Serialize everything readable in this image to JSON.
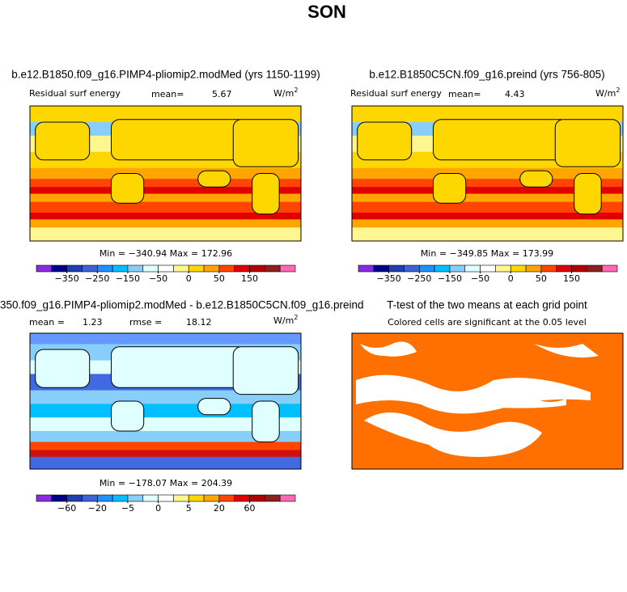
{
  "title": "SON",
  "panels": [
    {
      "title": "b.e12.B1850.f09_g16.PIMP4-pliomip2.modMed (yrs 1150-1199)",
      "left_label": "Residual surf energy",
      "mean_label": "mean=",
      "mean": "5.67",
      "units": "W/m",
      "units_exp": "2",
      "stats": "Min = −340.94 Max = 172.96",
      "colorbar_labels": [
        "−350",
        "−250",
        "−150",
        "−50",
        "0",
        "50",
        "150"
      ]
    },
    {
      "title": "b.e12.B1850C5CN.f09_g16.preind (yrs 756-805)",
      "left_label": "Residual surf energy",
      "mean_label": "mean=",
      "mean": "4.43",
      "units": "W/m",
      "units_exp": "2",
      "stats": "Min = −349.85 Max = 173.99",
      "colorbar_labels": [
        "−350",
        "−250",
        "−150",
        "−50",
        "0",
        "50",
        "150"
      ]
    },
    {
      "title": "350.f09_g16.PIMP4-pliomip2.modMed - b.e12.B1850C5CN.f09_g16.preind",
      "mean_label": "mean =",
      "mean": "1.23",
      "rmse_label": "rmse =",
      "rmse": "18.12",
      "units": "W/m",
      "units_exp": "2",
      "stats": "Min = −178.07 Max = 204.39",
      "colorbar_labels": [
        "−60",
        "−20",
        "−5",
        "0",
        "5",
        "20",
        "60"
      ]
    },
    {
      "title": "T-test of the two means at each grid point",
      "subtitle": "Colored cells are significant at the 0.05 level"
    }
  ]
}
